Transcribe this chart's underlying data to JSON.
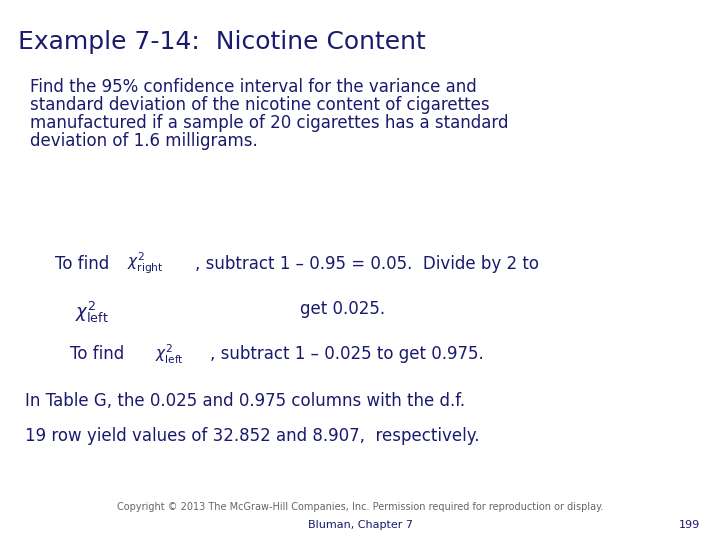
{
  "title": "Example 7-14:  Nicotine Content",
  "title_color": "#1a1a6e",
  "title_fontsize": 18,
  "body_color": "#1a1a6e",
  "body_fontsize": 12,
  "background_color": "#ffffff",
  "paragraph1_lines": [
    "Find the 95% confidence interval for the variance and",
    "standard deviation of the nicotine content of cigarettes",
    "manufactured if a sample of 20 cigarettes has a standard",
    "deviation of 1.6 milligrams."
  ],
  "para2": "In Table G, the 0.025 and 0.975 columns with the d.f.",
  "para3": "19 row yield values of 32.852 and 8.907,  respectively.",
  "footer_copyright": "Copyright © 2013 The McGraw-Hill Companies, Inc. Permission required for reproduction or display.",
  "footer_chapter": "Bluman, Chapter 7",
  "footer_page": "199",
  "footer_fontsize": 7,
  "chapter_fontsize": 8,
  "line1_text_a": "To find",
  "line1_suffix": ", subtract 1 – 0.95 = 0.05.  Divide by 2 to",
  "line2_get": "get 0.025.",
  "line3_text_a": "To find",
  "line3_suffix": ", subtract 1 – 0.025 to get 0.975."
}
